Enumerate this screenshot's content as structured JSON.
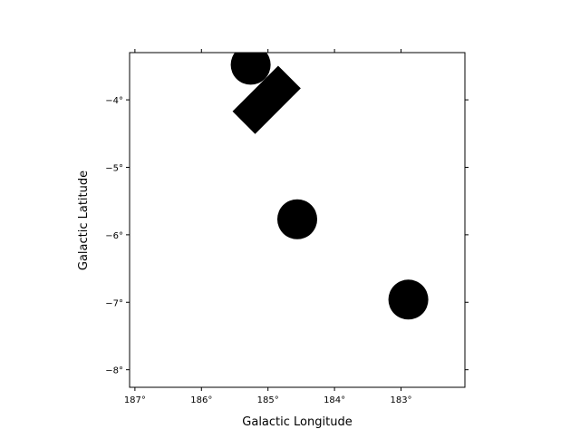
{
  "chart_data": {
    "type": "image",
    "xlabel": "Galactic Longitude",
    "ylabel": "Galactic Latitude",
    "xlim": [
      187.08,
      182.04
    ],
    "ylim": [
      -8.26,
      -3.3
    ],
    "x_ticks": [
      187,
      186,
      185,
      184,
      183
    ],
    "x_tick_labels": [
      "187°",
      "186°",
      "185°",
      "184°",
      "183°"
    ],
    "y_ticks": [
      -4,
      -5,
      -6,
      -7,
      -8
    ],
    "y_tick_labels": [
      "−4°",
      "−5°",
      "−6°",
      "−7°",
      "−8°"
    ],
    "grid": false,
    "background_color": "#ffffff",
    "mask_color": "#000000",
    "shapes": [
      {
        "kind": "circle",
        "lon": 185.26,
        "lat": -3.48,
        "radius_deg": 0.3
      },
      {
        "kind": "rectangle",
        "lon": 185.02,
        "lat": -4.0,
        "width_deg": 0.48,
        "height_deg": 0.97,
        "angle_deg": 45
      },
      {
        "kind": "circle",
        "lon": 184.56,
        "lat": -5.77,
        "radius_deg": 0.3
      },
      {
        "kind": "circle",
        "lon": 182.89,
        "lat": -6.96,
        "radius_deg": 0.3
      }
    ]
  }
}
